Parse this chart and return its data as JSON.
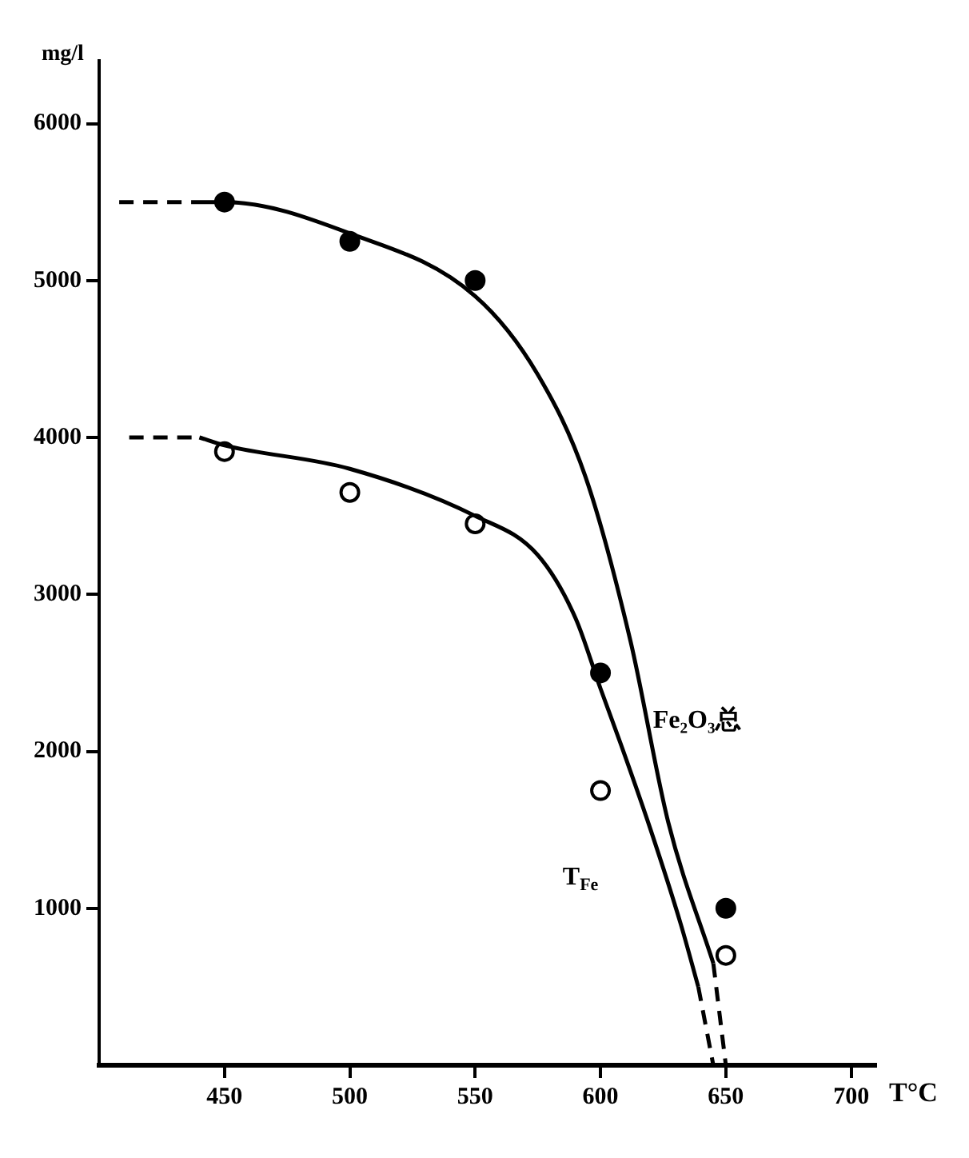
{
  "chart_data": {
    "type": "line",
    "xlabel": "T°C",
    "ylabel": "mg/l",
    "xlim": [
      400,
      710
    ],
    "xticks": [
      450,
      500,
      550,
      600,
      650,
      700
    ],
    "ylim": [
      0,
      6400
    ],
    "yticks": [
      1000,
      2000,
      3000,
      4000,
      5000,
      6000
    ],
    "grid": false,
    "legend": false,
    "series": [
      {
        "type": "line",
        "color": "#000000",
        "line_style": "dashed",
        "marker": "none",
        "x": [
          408,
          437
        ],
        "values": [
          5500,
          5500
        ]
      },
      {
        "type": "line",
        "name": "Fe₂O₃总",
        "color": "#000000",
        "line_style": "solid",
        "marker": "none",
        "x": [
          437,
          450,
          500,
          550,
          575,
          594,
          612,
          627,
          645
        ],
        "values": [
          5500,
          5500,
          5300,
          4900,
          4400,
          3750,
          2700,
          1550,
          650
        ]
      },
      {
        "type": "line",
        "color": "#000000",
        "line_style": "dashed",
        "marker": "none",
        "x": [
          645,
          650
        ],
        "values": [
          650,
          0
        ]
      },
      {
        "type": "line",
        "color": "#000000",
        "line_style": "dashed",
        "marker": "none",
        "x": [
          412,
          440
        ],
        "values": [
          4000,
          4000
        ]
      },
      {
        "type": "line",
        "name": "T$_{Fe}$",
        "color": "#000000",
        "line_style": "solid",
        "marker": "none",
        "x": [
          440,
          450,
          500,
          550,
          575,
          590,
          600,
          608,
          620,
          632,
          639
        ],
        "values": [
          4000,
          3950,
          3800,
          3500,
          3250,
          2850,
          2400,
          2050,
          1500,
          900,
          500
        ]
      },
      {
        "type": "line",
        "color": "#000000",
        "line_style": "dashed",
        "marker": "none",
        "x": [
          639,
          645
        ],
        "values": [
          500,
          0
        ]
      },
      {
        "type": "scatter",
        "color": "#000000",
        "marker": "circle",
        "x": [
          450,
          500,
          550,
          600,
          650
        ],
        "values": [
          5500,
          5250,
          5000,
          2500,
          1000
        ]
      },
      {
        "type": "scatter",
        "color": "#000000",
        "marker": "circle",
        "x": [
          450,
          500,
          550,
          600,
          650
        ],
        "values": [
          3910,
          3650,
          3450,
          1750,
          700
        ]
      }
    ]
  }
}
